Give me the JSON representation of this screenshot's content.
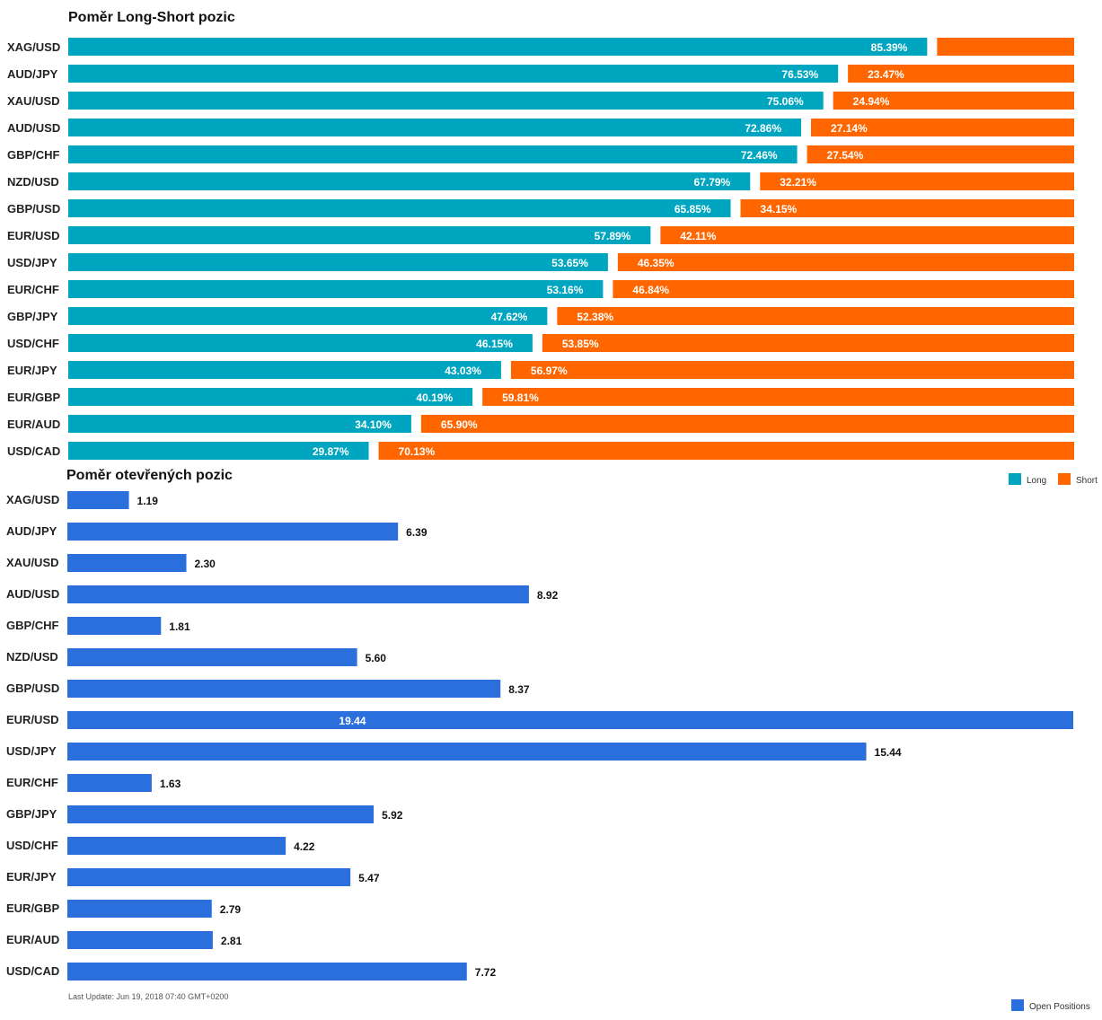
{
  "chart_data": [
    {
      "type": "bar",
      "orientation": "horizontal",
      "stacked": true,
      "title": "Poměr Long-Short pozic",
      "categories": [
        "XAG/USD",
        "AUD/JPY",
        "XAU/USD",
        "AUD/USD",
        "GBP/CHF",
        "NZD/USD",
        "GBP/USD",
        "EUR/USD",
        "USD/JPY",
        "EUR/CHF",
        "GBP/JPY",
        "USD/CHF",
        "EUR/JPY",
        "EUR/GBP",
        "EUR/AUD",
        "USD/CAD"
      ],
      "series": [
        {
          "name": "Long",
          "color": "#00a6c0",
          "values": [
            85.39,
            76.53,
            75.06,
            72.86,
            72.46,
            67.79,
            65.85,
            57.89,
            53.65,
            53.16,
            47.62,
            46.15,
            43.03,
            40.19,
            34.1,
            29.87
          ],
          "labels": [
            "85.39%",
            "76.53%",
            "75.06%",
            "72.86%",
            "72.46%",
            "67.79%",
            "65.85%",
            "57.89%",
            "53.65%",
            "53.16%",
            "47.62%",
            "46.15%",
            "43.03%",
            "40.19%",
            "34.10%",
            "29.87%"
          ]
        },
        {
          "name": "Short",
          "color": "#ff6600",
          "values": [
            14.61,
            23.47,
            24.94,
            27.14,
            27.54,
            32.21,
            34.15,
            42.11,
            46.35,
            46.84,
            52.38,
            53.85,
            56.97,
            59.81,
            65.9,
            70.13
          ],
          "labels": [
            "",
            "23.47%",
            "24.94%",
            "27.14%",
            "27.54%",
            "32.21%",
            "34.15%",
            "42.11%",
            "46.35%",
            "46.84%",
            "52.38%",
            "53.85%",
            "56.97%",
            "59.81%",
            "65.90%",
            "70.13%"
          ]
        }
      ],
      "xlim": [
        0,
        100
      ],
      "legend": "bottom-right",
      "grid": false
    },
    {
      "type": "bar",
      "orientation": "horizontal",
      "title": "Poměr otevřených pozic",
      "categories": [
        "XAG/USD",
        "AUD/JPY",
        "XAU/USD",
        "AUD/USD",
        "GBP/CHF",
        "NZD/USD",
        "GBP/USD",
        "EUR/USD",
        "USD/JPY",
        "EUR/CHF",
        "GBP/JPY",
        "USD/CHF",
        "EUR/JPY",
        "EUR/GBP",
        "EUR/AUD",
        "USD/CAD"
      ],
      "series": [
        {
          "name": "Open Positions",
          "color": "#2a6fdb",
          "values": [
            1.19,
            6.39,
            2.3,
            8.92,
            1.81,
            5.6,
            8.37,
            19.44,
            15.44,
            1.63,
            5.92,
            4.22,
            5.47,
            2.79,
            2.81,
            7.72
          ],
          "labels": [
            "1.19",
            "6.39",
            "2.30",
            "8.92",
            "1.81",
            "5.60",
            "8.37",
            "19.44",
            "15.44",
            "1.63",
            "5.92",
            "4.22",
            "5.47",
            "2.79",
            "2.81",
            "7.72"
          ]
        }
      ],
      "xlim": [
        0,
        19.44
      ],
      "legend": "bottom-right",
      "grid": false
    }
  ],
  "footer": "Last Update: Jun 19, 2018 07:40 GMT+0200"
}
